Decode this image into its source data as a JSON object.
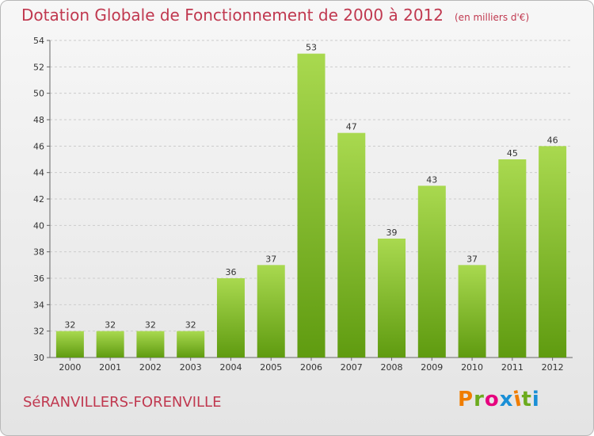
{
  "header": {
    "title": "Dotation Globale de Fonctionnement de 2000 à 2012",
    "subtitle": "(en milliers d'€)"
  },
  "footer": {
    "commune": "SéRANVILLERS-FORENVILLE",
    "logo_text": "Proxiti",
    "logo_colors": [
      "#f07d00",
      "#6cab1e",
      "#e6007e",
      "#1a8fd6",
      "#f07d00",
      "#6cab1e",
      "#1a8fd6"
    ]
  },
  "colors": {
    "bar_light": "#a9d94f",
    "bar_dark": "#5f9b10",
    "axis": "#666666",
    "grid": "#cccccc",
    "accent": "#c0384f"
  },
  "chart_data": {
    "type": "bar",
    "categories": [
      "2000",
      "2001",
      "2002",
      "2003",
      "2004",
      "2005",
      "2006",
      "2007",
      "2008",
      "2009",
      "2010",
      "2011",
      "2012"
    ],
    "values": [
      32,
      32,
      32,
      32,
      36,
      37,
      53,
      47,
      39,
      43,
      37,
      45,
      46
    ],
    "data_labels": [
      "32",
      "32",
      "32",
      "32",
      "36",
      "37",
      "53",
      "47",
      "39",
      "43",
      "37",
      "45",
      "46"
    ],
    "title": "Dotation Globale de Fonctionnement de 2000 à 2012",
    "ylim": [
      30,
      54
    ],
    "yticks": [
      30,
      32,
      34,
      36,
      38,
      40,
      42,
      44,
      46,
      48,
      50,
      52,
      54
    ],
    "grid": true,
    "legend": "none"
  }
}
